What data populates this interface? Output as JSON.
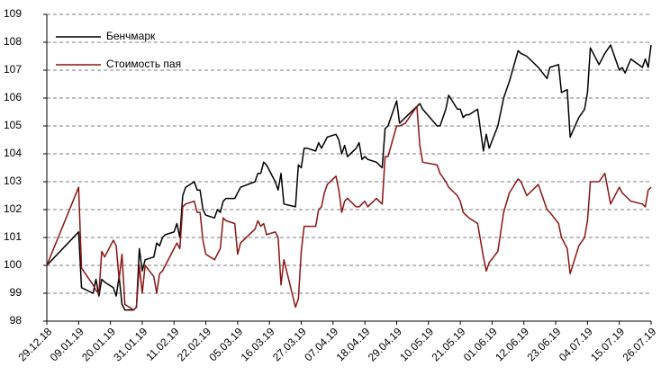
{
  "chart_data": {
    "type": "line",
    "x": [
      "29.12.18",
      "09.01.19",
      "10.01.19",
      "14.01.19",
      "15.01.19",
      "16.01.19",
      "17.01.19",
      "18.01.19",
      "21.01.19",
      "22.01.19",
      "23.01.19",
      "24.01.19",
      "25.01.19",
      "28.01.19",
      "29.01.19",
      "30.01.19",
      "31.01.19",
      "01.02.19",
      "04.02.19",
      "05.02.19",
      "06.02.19",
      "07.02.19",
      "08.02.19",
      "11.02.19",
      "12.02.19",
      "13.02.19",
      "14.02.19",
      "15.02.19",
      "18.02.19",
      "19.02.19",
      "20.02.19",
      "21.02.19",
      "22.02.19",
      "25.02.19",
      "26.02.19",
      "27.02.19",
      "28.02.19",
      "01.03.19",
      "04.03.19",
      "05.03.19",
      "06.03.19",
      "11.03.19",
      "12.03.19",
      "13.03.19",
      "14.03.19",
      "15.03.19",
      "18.03.19",
      "19.03.19",
      "20.03.19",
      "21.03.19",
      "25.03.19",
      "26.03.19",
      "27.03.19",
      "28.03.19",
      "29.03.19",
      "01.04.19",
      "02.04.19",
      "03.04.19",
      "04.04.19",
      "05.04.19",
      "08.04.19",
      "09.04.19",
      "10.04.19",
      "11.04.19",
      "12.04.19",
      "15.04.19",
      "16.04.19",
      "17.04.19",
      "18.04.19",
      "19.04.19",
      "22.04.19",
      "24.04.19",
      "25.04.19",
      "26.04.19",
      "29.04.19",
      "30.04.19",
      "02.05.19",
      "06.05.19",
      "07.05.19",
      "08.05.19",
      "13.05.19",
      "14.05.19",
      "16.05.19",
      "17.05.19",
      "20.05.19",
      "21.05.19",
      "22.05.19",
      "23.05.19",
      "24.05.19",
      "27.05.19",
      "29.05.19",
      "30.05.19",
      "31.05.19",
      "03.06.19",
      "05.06.19",
      "07.06.19",
      "10.06.19",
      "11.06.19",
      "13.06.19",
      "17.06.19",
      "20.06.19",
      "21.06.19",
      "24.06.19",
      "25.06.19",
      "27.06.19",
      "28.06.19",
      "01.07.19",
      "03.07.19",
      "04.07.19",
      "05.07.19",
      "08.07.19",
      "10.07.19",
      "12.07.19",
      "15.07.19",
      "16.07.19",
      "17.07.19",
      "19.07.19",
      "23.07.19",
      "24.07.19",
      "25.07.19",
      "26.07.19"
    ],
    "series": [
      {
        "name": "Бенчмарк",
        "color": "#000000",
        "values": [
          100,
          101.2,
          99.2,
          99.0,
          99.5,
          98.9,
          99.5,
          99.4,
          99.2,
          98.9,
          99.6,
          98.6,
          98.4,
          98.4,
          98.5,
          100.6,
          99.8,
          100.2,
          100.3,
          100.8,
          100.7,
          101.0,
          101.1,
          101.2,
          101.5,
          101.0,
          102.5,
          102.8,
          103.0,
          102.7,
          102.7,
          102.0,
          101.8,
          101.7,
          102.0,
          101.9,
          102.3,
          102.4,
          102.4,
          102.6,
          102.8,
          103.0,
          103.3,
          103.3,
          103.7,
          103.6,
          103.0,
          102.7,
          103.3,
          102.2,
          102.1,
          103.6,
          103.5,
          104.2,
          104.2,
          104.1,
          104.4,
          104.2,
          104.4,
          104.6,
          104.7,
          104.5,
          104.0,
          104.3,
          103.9,
          104.2,
          104.4,
          103.8,
          103.9,
          103.8,
          103.7,
          103.5,
          104.9,
          105.0,
          105.9,
          105.1,
          105.3,
          105.7,
          105.8,
          105.6,
          105.0,
          105.0,
          105.6,
          106.1,
          105.6,
          105.6,
          105.3,
          105.4,
          105.4,
          105.6,
          104.1,
          104.7,
          104.2,
          105.0,
          106.0,
          106.6,
          107.7,
          107.6,
          107.5,
          107.1,
          106.7,
          107.1,
          107.2,
          106.2,
          106.3,
          104.6,
          105.3,
          105.6,
          106.2,
          107.8,
          107.2,
          107.6,
          107.9,
          107.0,
          107.1,
          106.9,
          107.4,
          107.1,
          107.4,
          107.1,
          107.9
        ]
      },
      {
        "name": "Стоимость пая",
        "color": "#8b1414",
        "values": [
          100,
          102.8,
          99.9,
          99.3,
          99.1,
          99.0,
          100.5,
          100.3,
          100.9,
          100.7,
          99.5,
          100.4,
          98.6,
          98.4,
          98.5,
          100.0,
          99.0,
          100.0,
          99.6,
          99.0,
          99.7,
          99.8,
          100.0,
          100.6,
          100.8,
          100.6,
          102.1,
          102.2,
          102.3,
          101.9,
          101.9,
          100.9,
          100.4,
          100.2,
          100.4,
          100.6,
          101.7,
          101.6,
          101.5,
          100.4,
          100.8,
          101.3,
          101.6,
          101.4,
          101.5,
          101.1,
          101.2,
          101.0,
          99.3,
          100.2,
          98.5,
          98.8,
          100.5,
          101.4,
          101.4,
          101.4,
          102.0,
          102.1,
          102.6,
          102.9,
          103.2,
          102.7,
          101.9,
          102.3,
          102.4,
          102.1,
          102.1,
          102.2,
          102.3,
          102.1,
          102.4,
          102.2,
          103.9,
          103.9,
          105.0,
          105.0,
          105.1,
          105.7,
          104.3,
          103.7,
          103.6,
          103.3,
          103.0,
          102.8,
          102.5,
          102.3,
          101.9,
          101.8,
          101.7,
          101.5,
          100.3,
          99.8,
          100.1,
          100.5,
          101.9,
          102.6,
          103.1,
          103.0,
          102.5,
          102.9,
          102.0,
          101.9,
          101.5,
          101.0,
          100.6,
          99.7,
          100.7,
          101.0,
          101.6,
          103.0,
          103.0,
          103.3,
          102.2,
          102.8,
          102.6,
          102.5,
          102.3,
          102.2,
          102.1,
          102.7,
          102.8
        ]
      }
    ],
    "xlim": [
      "29.12.18",
      "26.07.19"
    ],
    "xticks": [
      "29.12.18",
      "09.01.19",
      "20.01.19",
      "31.01.19",
      "11.02.19",
      "22.02.19",
      "05.03.19",
      "16.03.19",
      "27.03.19",
      "07.04.19",
      "18.04.19",
      "29.04.19",
      "10.05.19",
      "21.05.19",
      "01.06.19",
      "12.06.19",
      "23.06.19",
      "04.07.19",
      "15.07.19",
      "26.07.19"
    ],
    "ylim": [
      98,
      109
    ],
    "yticks": [
      98,
      99,
      100,
      101,
      102,
      103,
      104,
      105,
      106,
      107,
      108,
      109
    ],
    "grid": true,
    "legend": "upper left"
  }
}
